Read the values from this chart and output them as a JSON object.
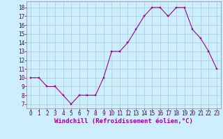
{
  "x": [
    0,
    1,
    2,
    3,
    4,
    5,
    6,
    7,
    8,
    9,
    10,
    11,
    12,
    13,
    14,
    15,
    16,
    17,
    18,
    19,
    20,
    21,
    22,
    23
  ],
  "y": [
    10,
    10,
    9,
    9,
    8,
    7,
    8,
    8,
    8,
    10,
    13,
    13,
    14,
    15.5,
    17,
    18,
    18,
    17,
    18,
    18,
    15.5,
    14.5,
    13,
    11
  ],
  "line_color": "#990099",
  "marker": "s",
  "marker_size": 1.5,
  "background_color": "#cceeff",
  "grid_color": "#aacccc",
  "xlabel": "Windchill (Refroidissement éolien,°C)",
  "xlabel_fontsize": 6.5,
  "ylabel_ticks": [
    7,
    8,
    9,
    10,
    11,
    12,
    13,
    14,
    15,
    16,
    17,
    18
  ],
  "xlim": [
    -0.5,
    23.5
  ],
  "ylim": [
    6.5,
    18.7
  ],
  "tick_fontsize": 5.5,
  "spine_color": "#888888"
}
